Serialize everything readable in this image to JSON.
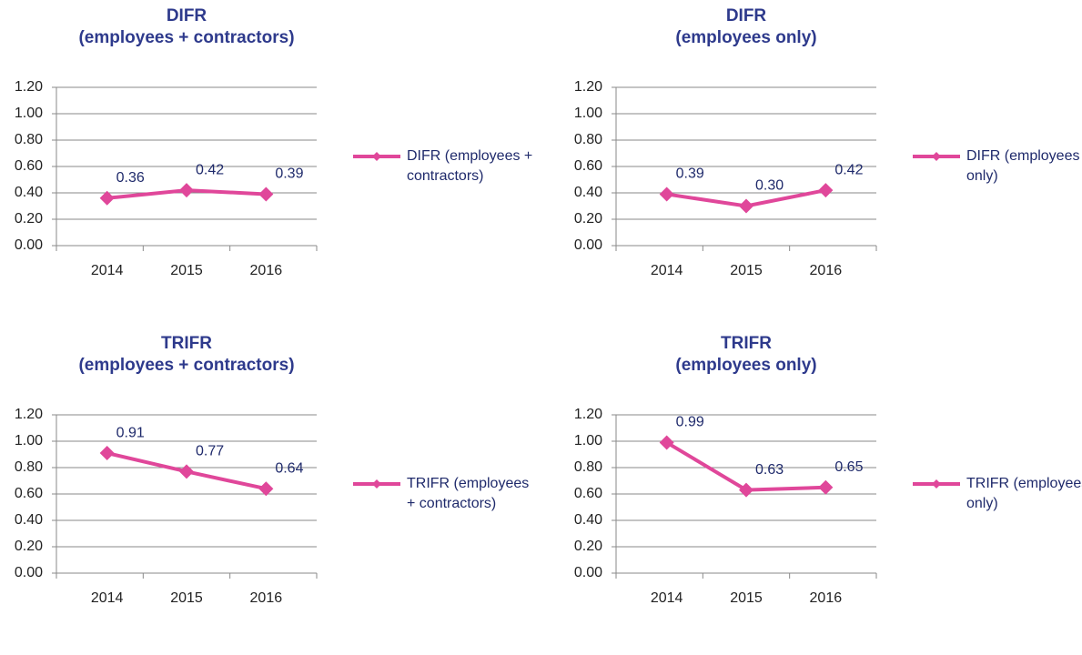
{
  "chart_data": [
    {
      "type": "line",
      "title": "DIFR",
      "subtitle": "(employees + contractors)",
      "categories": [
        "2014",
        "2015",
        "2016"
      ],
      "series": [
        {
          "name": "DIFR (employees + contractors)",
          "color": "#e0479a",
          "values": [
            0.36,
            0.42,
            0.39
          ],
          "value_labels": [
            "0.36",
            "0.42",
            "0.39"
          ]
        }
      ],
      "ylim": [
        0,
        1.2
      ],
      "yticks": [
        {
          "value": 0,
          "label": "0.00"
        },
        {
          "value": 0.2,
          "label": "0.20"
        },
        {
          "value": 0.4,
          "label": "0.40"
        },
        {
          "value": 0.6,
          "label": "0.60"
        },
        {
          "value": 0.8,
          "label": "0.80"
        },
        {
          "value": 1,
          "label": "1.00"
        },
        {
          "value": 1.2,
          "label": "1.20"
        }
      ],
      "grid": true,
      "legend": "right"
    },
    {
      "type": "line",
      "title": "DIFR",
      "subtitle": "(employees only)",
      "categories": [
        "2014",
        "2015",
        "2016"
      ],
      "series": [
        {
          "name": "DIFR (employees only)",
          "color": "#e0479a",
          "values": [
            0.39,
            0.3,
            0.42
          ],
          "value_labels": [
            "0.39",
            "0.30",
            "0.42"
          ]
        }
      ],
      "ylim": [
        0,
        1.2
      ],
      "yticks": [
        {
          "value": 0,
          "label": "0.00"
        },
        {
          "value": 0.2,
          "label": "0.20"
        },
        {
          "value": 0.4,
          "label": "0.40"
        },
        {
          "value": 0.6,
          "label": "0.60"
        },
        {
          "value": 0.8,
          "label": "0.80"
        },
        {
          "value": 1,
          "label": "1.00"
        },
        {
          "value": 1.2,
          "label": "1.20"
        }
      ],
      "grid": true,
      "legend": "right"
    },
    {
      "type": "line",
      "title": "TRIFR",
      "subtitle": "(employees + contractors)",
      "categories": [
        "2014",
        "2015",
        "2016"
      ],
      "series": [
        {
          "name": "TRIFR (employees + contractors)",
          "color": "#e0479a",
          "values": [
            0.91,
            0.77,
            0.64
          ],
          "value_labels": [
            "0.91",
            "0.77",
            "0.64"
          ]
        }
      ],
      "ylim": [
        0,
        1.2
      ],
      "yticks": [
        {
          "value": 0,
          "label": "0.00"
        },
        {
          "value": 0.2,
          "label": "0.20"
        },
        {
          "value": 0.4,
          "label": "0.40"
        },
        {
          "value": 0.6,
          "label": "0.60"
        },
        {
          "value": 0.8,
          "label": "0.80"
        },
        {
          "value": 1,
          "label": "1.00"
        },
        {
          "value": 1.2,
          "label": "1.20"
        }
      ],
      "grid": true,
      "legend": "right"
    },
    {
      "type": "line",
      "title": "TRIFR",
      "subtitle": "(employees only)",
      "categories": [
        "2014",
        "2015",
        "2016"
      ],
      "series": [
        {
          "name": "TRIFR (employees only)",
          "color": "#e0479a",
          "values": [
            0.99,
            0.63,
            0.65
          ],
          "value_labels": [
            "0.99",
            "0.63",
            "0.65"
          ]
        }
      ],
      "ylim": [
        0,
        1.2
      ],
      "yticks": [
        {
          "value": 0,
          "label": "0.00"
        },
        {
          "value": 0.2,
          "label": "0.20"
        },
        {
          "value": 0.4,
          "label": "0.40"
        },
        {
          "value": 0.6,
          "label": "0.60"
        },
        {
          "value": 0.8,
          "label": "0.80"
        },
        {
          "value": 1,
          "label": "1.00"
        },
        {
          "value": 1.2,
          "label": "1.20"
        }
      ],
      "grid": true,
      "legend": "right"
    }
  ]
}
